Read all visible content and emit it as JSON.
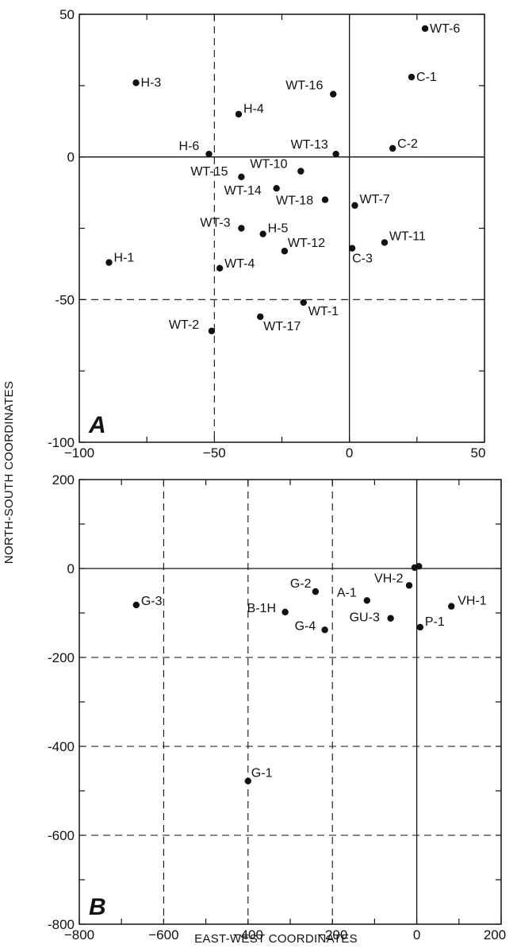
{
  "figure": {
    "ylabel": "NORTH-SOUTH COORDINATES",
    "xlabel": "EAST-WEST COORDINATES"
  },
  "chart_data": [
    {
      "type": "scatter",
      "panel_label": "A",
      "xlim": [
        -100,
        50
      ],
      "ylim": [
        -100,
        50
      ],
      "x_ticks": [
        -100,
        -50,
        0,
        50
      ],
      "y_ticks": [
        -100,
        -50,
        0,
        50
      ],
      "grid": "dashed lines at x=-50 and y=-50; solid axes at x=0 and y=0",
      "points": [
        {
          "label": "WT-6",
          "x": 28,
          "y": 45
        },
        {
          "label": "H-3",
          "x": -79,
          "y": 26
        },
        {
          "label": "C-1",
          "x": 23,
          "y": 28
        },
        {
          "label": "WT-16",
          "x": -6,
          "y": 22
        },
        {
          "label": "H-4",
          "x": -41,
          "y": 15
        },
        {
          "label": "H-6",
          "x": -52,
          "y": 1
        },
        {
          "label": "WT-13",
          "x": -5,
          "y": 1
        },
        {
          "label": "C-2",
          "x": 16,
          "y": 3
        },
        {
          "label": "WT-15",
          "x": -40,
          "y": -7
        },
        {
          "label": "WT-10",
          "x": -18,
          "y": -5
        },
        {
          "label": "WT-14",
          "x": -27,
          "y": -11
        },
        {
          "label": "WT-18",
          "x": -9,
          "y": -15
        },
        {
          "label": "WT-7",
          "x": 2,
          "y": -17
        },
        {
          "label": "WT-3",
          "x": -40,
          "y": -25
        },
        {
          "label": "H-5",
          "x": -32,
          "y": -27
        },
        {
          "label": "H-1",
          "x": -89,
          "y": -37
        },
        {
          "label": "WT-12",
          "x": -24,
          "y": -33
        },
        {
          "label": "C-3",
          "x": 1,
          "y": -32
        },
        {
          "label": "WT-11",
          "x": 13,
          "y": -30
        },
        {
          "label": "WT-4",
          "x": -48,
          "y": -39
        },
        {
          "label": "WT-1",
          "x": -17,
          "y": -51
        },
        {
          "label": "WT-2",
          "x": -51,
          "y": -61
        },
        {
          "label": "WT-17",
          "x": -33,
          "y": -56
        }
      ]
    },
    {
      "type": "scatter",
      "panel_label": "B",
      "xlim": [
        -800,
        200
      ],
      "ylim": [
        -800,
        200
      ],
      "x_ticks": [
        -800,
        -600,
        -400,
        -200,
        0,
        200
      ],
      "y_ticks": [
        -800,
        -600,
        -400,
        -200,
        0,
        200
      ],
      "grid": "dashed lines at x=-600,-400,-200 and y=-200,-400,-600; solid axes at x=0 and y=0",
      "points": [
        {
          "label": "G-3",
          "x": -665,
          "y": -82
        },
        {
          "label": "G-2",
          "x": -240,
          "y": -52
        },
        {
          "label": "B-1H",
          "x": -312,
          "y": -98
        },
        {
          "label": "G-4",
          "x": -218,
          "y": -138
        },
        {
          "label": "A-1",
          "x": -118,
          "y": -72
        },
        {
          "label": "VH-2",
          "x": -18,
          "y": -38
        },
        {
          "label": "GU-3",
          "x": -62,
          "y": -112
        },
        {
          "label": "P-1",
          "x": 8,
          "y": -132
        },
        {
          "label": "VH-1",
          "x": 82,
          "y": -85
        },
        {
          "label": "G-1",
          "x": -400,
          "y": -478
        },
        {
          "label": "",
          "x": -5,
          "y": 2
        },
        {
          "label": "",
          "x": 5,
          "y": 5
        }
      ]
    }
  ]
}
